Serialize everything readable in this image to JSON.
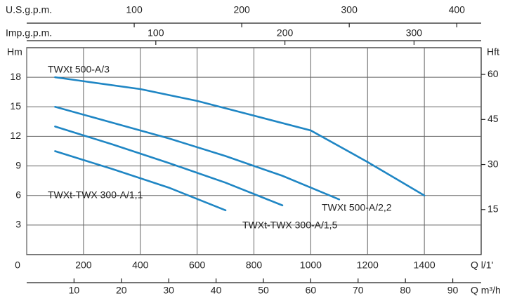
{
  "chart_data": {
    "type": "line",
    "ylabel": "Hm",
    "y2label": "Hft",
    "xlabel": "Q l/1'",
    "xlim": [
      0,
      1600
    ],
    "xticks": [
      0,
      200,
      400,
      600,
      800,
      1000,
      1200,
      1400
    ],
    "ylim": [
      0,
      21
    ],
    "yticks": [
      3,
      6,
      9,
      12,
      15,
      18
    ],
    "y2lim": [
      0,
      68.9
    ],
    "y2ticks": [
      15,
      30,
      45,
      60
    ],
    "us_gpm": {
      "label": "U.S.g.p.m.",
      "xlim": [
        0,
        422.7
      ],
      "xticks": [
        100,
        200,
        300,
        400
      ]
    },
    "imp_gpm": {
      "label": "Imp.g.p.m.",
      "xlim": [
        0,
        352
      ],
      "xticks": [
        100,
        200,
        300
      ]
    },
    "m3h": {
      "label": "Q m³/h",
      "xlim": [
        0,
        96
      ],
      "xticks": [
        10,
        20,
        30,
        40,
        50,
        60,
        70,
        80,
        90
      ]
    },
    "grid": true,
    "series": [
      {
        "name": "TWXt 500-A/3",
        "color": "#1f86c4",
        "x": [
          100,
          200,
          400,
          600,
          800,
          1000,
          1200,
          1400
        ],
        "values": [
          18,
          17.6,
          16.8,
          15.6,
          14.1,
          12.6,
          9.4,
          6
        ]
      },
      {
        "name": "TWXt 500-A/2,2",
        "color": "#1f86c4",
        "x": [
          100,
          300,
          500,
          700,
          900,
          1100
        ],
        "values": [
          15,
          13.4,
          11.8,
          10,
          8,
          5.6
        ]
      },
      {
        "name": "TWXt-TWX 300-A/1,5",
        "color": "#1f86c4",
        "x": [
          100,
          300,
          500,
          700,
          900
        ],
        "values": [
          13,
          11.2,
          9.3,
          7.3,
          5
        ]
      },
      {
        "name": "TWXt-TWX 300-A/1,1",
        "color": "#1f86c4",
        "x": [
          100,
          300,
          500,
          700
        ],
        "values": [
          10.5,
          8.7,
          6.8,
          4.5
        ]
      }
    ]
  }
}
